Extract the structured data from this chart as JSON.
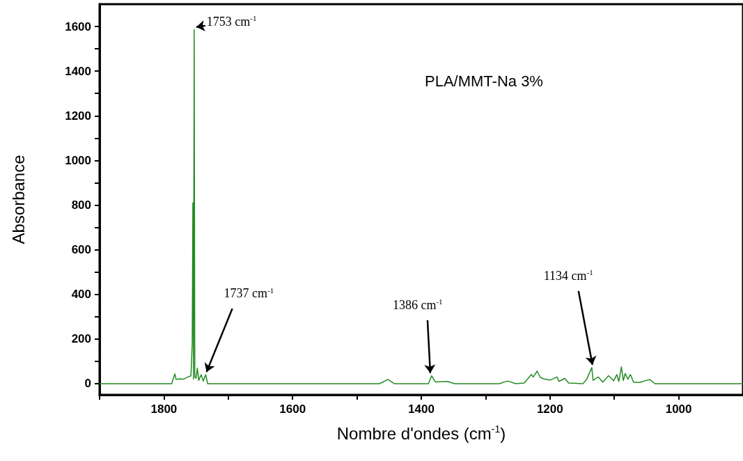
{
  "chart_data": {
    "type": "line",
    "xlabel": "Nombre d'ondes (cm$^{-1}$)",
    "ylabel": "Absorbance",
    "annotations": [
      {
        "text": "1753 cm$^{-1}$",
        "x": 1753,
        "y": 1585
      },
      {
        "text": "1737 cm$^{-1}$",
        "x": 1737,
        "y": 40
      },
      {
        "text": "1386 cm$^{-1}$",
        "x": 1386,
        "y": 35
      },
      {
        "text": "1134 cm$^{-1}$",
        "x": 1134,
        "y": 72
      },
      "PLA/MMT-Na 3%"
    ],
    "series": [
      {
        "color": "#228b22",
        "x": [
          1900,
          1788,
          1783,
          1781,
          1775,
          1770,
          1763,
          1758,
          1756,
          1755,
          1754,
          1753,
          1752,
          1750,
          1748,
          1746,
          1742,
          1739,
          1735,
          1732,
          1465,
          1452,
          1442,
          1389,
          1384,
          1378,
          1359,
          1348,
          1279,
          1266,
          1253,
          1240,
          1229,
          1226,
          1220,
          1215,
          1209,
          1200,
          1189,
          1186,
          1177,
          1171,
          1149,
          1143,
          1135,
          1133,
          1125,
          1118,
          1109,
          1106,
          1101,
          1096,
          1093,
          1089,
          1086,
          1083,
          1079,
          1075,
          1070,
          1060,
          1045,
          1037,
          900
        ],
        "values": [
          0,
          0,
          44,
          19,
          22,
          20,
          30,
          35,
          180,
          810,
          20,
          1585,
          30,
          25,
          70,
          15,
          40,
          12,
          40,
          0,
          0,
          19,
          0,
          0,
          35,
          8,
          10,
          0,
          0,
          12,
          0,
          3,
          41,
          30,
          56,
          28,
          21,
          16,
          30,
          10,
          24,
          3,
          0,
          19,
          72,
          15,
          30,
          7,
          36,
          28,
          13,
          41,
          10,
          75,
          14,
          46,
          20,
          41,
          6,
          6,
          19,
          0,
          0
        ]
      }
    ],
    "xlim": [
      1900,
      900
    ],
    "xticks": [
      {
        "value": 1900,
        "label": null
      },
      1800,
      {
        "value": 1700,
        "label": null
      },
      1600,
      {
        "value": 1500,
        "label": null
      },
      1400,
      {
        "value": 1300,
        "label": null
      },
      1200,
      {
        "value": 1100,
        "label": null
      },
      1000
    ],
    "ylim": [
      -50,
      1700
    ],
    "yticks": [
      0,
      {
        "value": 100,
        "label": null
      },
      200,
      {
        "value": 300,
        "label": null
      },
      400,
      {
        "value": 500,
        "label": null
      },
      600,
      {
        "value": 700,
        "label": null
      },
      800,
      {
        "value": 900,
        "label": null
      },
      1000,
      {
        "value": 1100,
        "label": null
      },
      1200,
      {
        "value": 1300,
        "label": null
      },
      1400,
      {
        "value": 1500,
        "label": null
      },
      1600
    ],
    "grid": false,
    "marker": "none",
    "line_style": "solid"
  }
}
